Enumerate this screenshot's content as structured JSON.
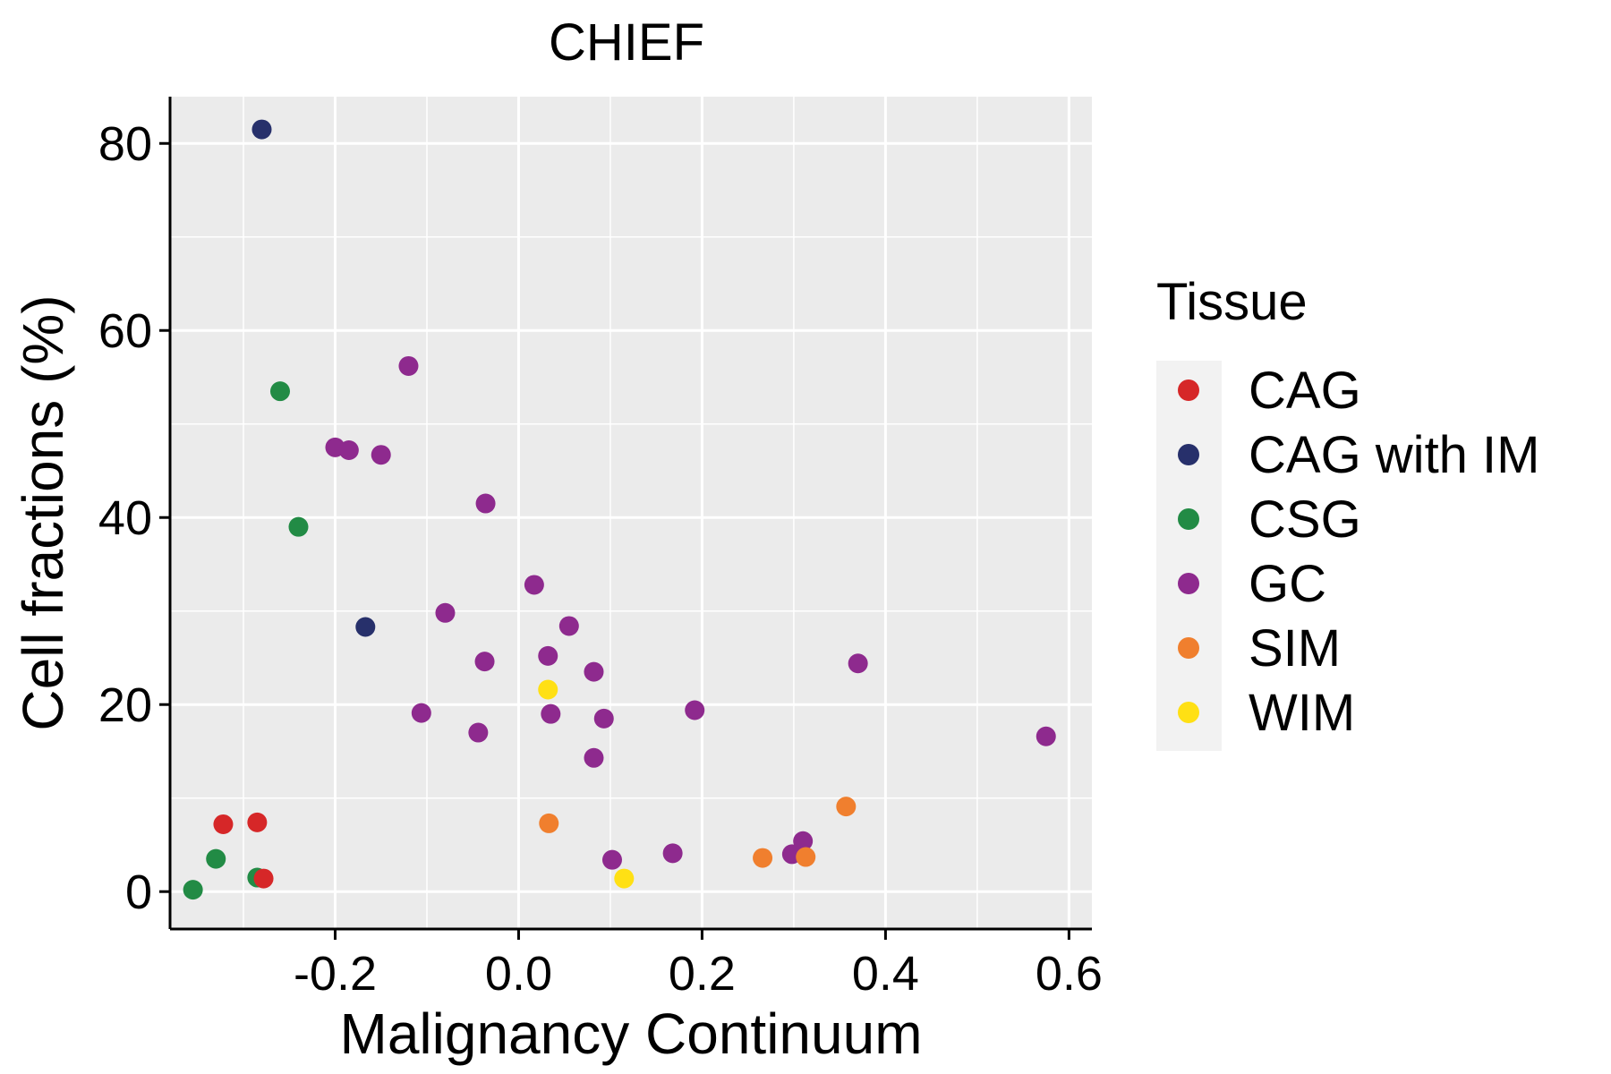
{
  "chart_data": {
    "type": "scatter",
    "title": "CHIEF",
    "xlabel": "Malignancy Continuum",
    "ylabel": "Cell fractions (%)",
    "xlim": [
      -0.38,
      0.625
    ],
    "ylim": [
      -4,
      85
    ],
    "x_ticks": [
      -0.2,
      0.0,
      0.2,
      0.4,
      0.6
    ],
    "x_tick_labels": [
      "-0.2",
      "0.0",
      "0.2",
      "0.4",
      "0.6"
    ],
    "y_ticks": [
      0,
      20,
      40,
      60,
      80
    ],
    "y_tick_labels": [
      "0",
      "20",
      "40",
      "60",
      "80"
    ],
    "grid": true,
    "legend": {
      "title": "Tissue",
      "position": "right",
      "entries": [
        {
          "label": "CAG",
          "color": "#d62728"
        },
        {
          "label": "CAG with IM",
          "color": "#27306b"
        },
        {
          "label": "CSG",
          "color": "#228b45"
        },
        {
          "label": "GC",
          "color": "#8e2a8e"
        },
        {
          "label": "SIM",
          "color": "#f07f2e"
        },
        {
          "label": "WIM",
          "color": "#ffe014"
        }
      ]
    },
    "series": [
      {
        "name": "CSG",
        "color": "#228b45",
        "points": [
          [
            -0.26,
            53.5
          ],
          [
            -0.24,
            39.0
          ],
          [
            -0.33,
            3.5
          ],
          [
            -0.285,
            1.5
          ],
          [
            -0.355,
            0.2
          ]
        ]
      },
      {
        "name": "CAG",
        "color": "#d62728",
        "points": [
          [
            -0.322,
            7.2
          ],
          [
            -0.285,
            7.4
          ],
          [
            -0.278,
            1.4
          ]
        ]
      },
      {
        "name": "CAG with IM",
        "color": "#27306b",
        "points": [
          [
            -0.28,
            81.5
          ],
          [
            -0.167,
            28.3
          ]
        ]
      },
      {
        "name": "GC",
        "color": "#8e2a8e",
        "points": [
          [
            -0.12,
            56.2
          ],
          [
            -0.2,
            47.5
          ],
          [
            -0.185,
            47.2
          ],
          [
            -0.15,
            46.7
          ],
          [
            -0.036,
            41.5
          ],
          [
            0.017,
            32.8
          ],
          [
            -0.08,
            29.8
          ],
          [
            0.055,
            28.4
          ],
          [
            -0.037,
            24.6
          ],
          [
            0.032,
            25.2
          ],
          [
            0.082,
            23.5
          ],
          [
            0.37,
            24.4
          ],
          [
            0.035,
            19.0
          ],
          [
            0.093,
            18.5
          ],
          [
            -0.106,
            19.1
          ],
          [
            0.192,
            19.4
          ],
          [
            -0.044,
            17.0
          ],
          [
            0.575,
            16.6
          ],
          [
            0.082,
            14.3
          ],
          [
            0.102,
            3.4
          ],
          [
            0.168,
            4.1
          ],
          [
            0.298,
            4.0
          ],
          [
            0.31,
            5.4
          ]
        ]
      },
      {
        "name": "SIM",
        "color": "#f07f2e",
        "points": [
          [
            0.033,
            7.3
          ],
          [
            0.357,
            9.1
          ],
          [
            0.266,
            3.6
          ],
          [
            0.313,
            3.7
          ]
        ]
      },
      {
        "name": "WIM",
        "color": "#ffe014",
        "points": [
          [
            0.032,
            21.6
          ],
          [
            0.115,
            1.4
          ]
        ]
      }
    ]
  }
}
